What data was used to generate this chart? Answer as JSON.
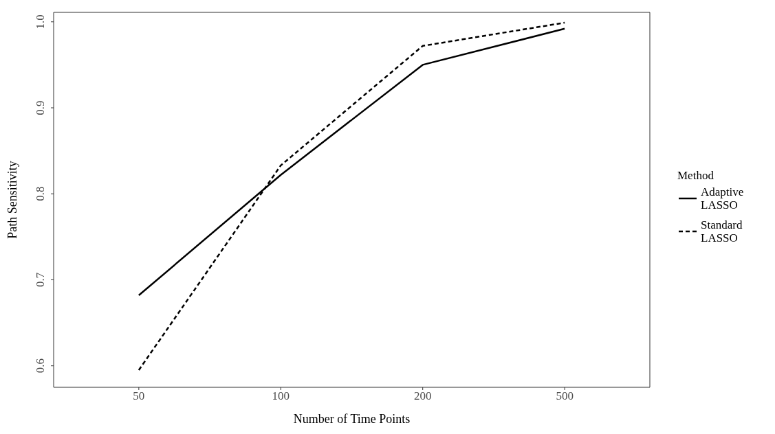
{
  "chart_data": {
    "type": "line",
    "xlabel": "Number of Time Points",
    "ylabel": "Path Sensitivity",
    "legend_title": "Method",
    "categories": [
      "50",
      "100",
      "200",
      "500"
    ],
    "series": [
      {
        "name": "Adaptive LASSO",
        "color": "#000000",
        "line_style": "solid",
        "values": [
          0.682,
          0.822,
          0.95,
          0.992
        ]
      },
      {
        "name": "Standard LASSO",
        "color": "#000000",
        "line_style": "dashed",
        "values": [
          0.595,
          0.833,
          0.972,
          0.999
        ]
      }
    ],
    "ylim": [
      0.575,
      1.011
    ],
    "yticks": [
      0.6,
      0.7,
      0.8,
      0.9,
      {
        "value": 1,
        "label": "1.0"
      }
    ],
    "legend": "right",
    "marker": "none"
  }
}
